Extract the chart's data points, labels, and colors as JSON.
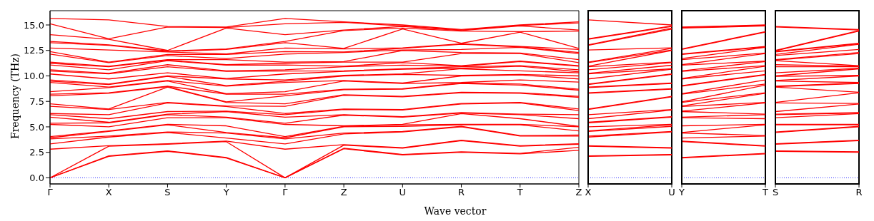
{
  "chart_data": [
    {
      "type": "line",
      "xlabel": "Wave vector",
      "ylabel": "Frequency (THz)",
      "categories": [
        "Γ",
        "X",
        "S",
        "Y",
        "Γ",
        "Z",
        "U",
        "R",
        "T",
        "Z"
      ],
      "ylim": [
        -0.6,
        16.4
      ],
      "yticks": [
        {
          "value": 0,
          "label": "0.0"
        },
        {
          "value": 2.5,
          "label": "2.5"
        },
        {
          "value": 5,
          "label": "5.0"
        },
        {
          "value": 7.5,
          "label": "7.5"
        },
        {
          "value": 10,
          "label": "10.0"
        },
        {
          "value": 12.5,
          "label": "12.5"
        },
        {
          "value": 15,
          "label": "15.0"
        }
      ],
      "ref_lines": [
        {
          "axis": "y",
          "value": 0,
          "color": "#0000ff",
          "line_style": "dotted"
        }
      ],
      "series": [
        {
          "color": "#ff0000",
          "values": [
            0,
            2.1,
            2.6,
            1.95,
            0,
            2.85,
            2.25,
            2.5,
            2.35,
            2.7
          ]
        },
        {
          "color": "#ff0000",
          "values": [
            0,
            2.15,
            2.65,
            2.0,
            0,
            2.9,
            2.3,
            2.55,
            2.4,
            3.0
          ]
        },
        {
          "color": "#ff0000",
          "values": [
            0,
            3.1,
            3.3,
            3.55,
            0,
            3.2,
            2.9,
            3.65,
            3.1,
            3.3
          ]
        },
        {
          "color": "#ff0000",
          "values": [
            2.81,
            3.15,
            3.35,
            3.6,
            2.81,
            3.25,
            2.95,
            3.7,
            3.15,
            3.35
          ]
        },
        {
          "color": "#ff0000",
          "values": [
            3.33,
            4.0,
            4.45,
            3.9,
            3.33,
            4.3,
            4.5,
            5.0,
            4.1,
            4.1
          ]
        },
        {
          "color": "#ff0000",
          "values": [
            3.81,
            4.1,
            4.5,
            4.4,
            3.81,
            4.4,
            4.55,
            5.05,
            4.15,
            4.2
          ]
        },
        {
          "color": "#ff0000",
          "values": [
            3.93,
            4.55,
            5.2,
            4.45,
            3.93,
            5.0,
            5.05,
            5.2,
            5.2,
            4.6
          ]
        },
        {
          "color": "#ff0000",
          "values": [
            4.05,
            4.6,
            5.25,
            5.1,
            4.05,
            5.05,
            5.2,
            5.25,
            5.25,
            5.0
          ]
        },
        {
          "color": "#ff0000",
          "values": [
            5.24,
            5.0,
            5.9,
            5.9,
            5.24,
            5.1,
            5.25,
            6.3,
            5.8,
            5.05
          ]
        },
        {
          "color": "#ff0000",
          "values": [
            5.36,
            5.4,
            6.2,
            5.95,
            5.36,
            6.15,
            5.95,
            6.35,
            6.2,
            5.8
          ]
        },
        {
          "color": "#ff0000",
          "values": [
            5.95,
            5.45,
            6.25,
            6.5,
            5.95,
            6.2,
            6.0,
            6.4,
            6.25,
            6.2
          ]
        },
        {
          "color": "#ff0000",
          "values": [
            6.19,
            5.8,
            6.5,
            6.55,
            6.19,
            6.7,
            6.65,
            7.25,
            7.35,
            6.6
          ]
        },
        {
          "color": "#ff0000",
          "values": [
            6.31,
            6.2,
            7.35,
            7.0,
            6.31,
            6.75,
            6.7,
            7.3,
            7.4,
            6.75
          ]
        },
        {
          "color": "#ff0000",
          "values": [
            7.02,
            6.7,
            7.4,
            7.05,
            7.02,
            8.1,
            7.95,
            8.35,
            8.3,
            7.9
          ]
        },
        {
          "color": "#ff0000",
          "values": [
            7.26,
            6.75,
            8.9,
            7.4,
            7.26,
            8.15,
            8.0,
            8.4,
            8.35,
            8.0
          ]
        },
        {
          "color": "#ff0000",
          "values": [
            8.05,
            8.3,
            8.95,
            7.45,
            8.05,
            8.65,
            8.7,
            9.25,
            9.1,
            8.6
          ]
        },
        {
          "color": "#ff0000",
          "values": [
            8.21,
            8.35,
            9.0,
            8.2,
            8.21,
            8.7,
            8.75,
            9.3,
            9.2,
            8.7
          ]
        },
        {
          "color": "#ff0000",
          "values": [
            8.45,
            8.85,
            9.5,
            8.25,
            8.45,
            9.5,
            9.25,
            9.35,
            9.6,
            9.4
          ]
        },
        {
          "color": "#ff0000",
          "values": [
            9.36,
            8.9,
            9.55,
            9.0,
            9.36,
            9.55,
            9.3,
            10.0,
            10.1,
            9.7
          ]
        },
        {
          "color": "#ff0000",
          "values": [
            9.48,
            9.15,
            9.95,
            9.05,
            9.48,
            10.0,
            10.15,
            10.05,
            10.15,
            10.0
          ]
        },
        {
          "color": "#ff0000",
          "values": [
            9.6,
            9.2,
            10.0,
            9.7,
            9.6,
            10.05,
            10.2,
            10.7,
            10.5,
            10.3
          ]
        },
        {
          "color": "#ff0000",
          "values": [
            10.19,
            9.7,
            10.3,
            9.75,
            10.19,
            10.45,
            10.65,
            10.75,
            10.95,
            10.4
          ]
        },
        {
          "color": "#ff0000",
          "values": [
            10.48,
            10.2,
            10.9,
            10.45,
            10.48,
            10.5,
            10.7,
            10.9,
            11.0,
            10.6
          ]
        },
        {
          "color": "#ff0000",
          "values": [
            10.6,
            10.25,
            11.1,
            10.5,
            10.6,
            10.9,
            11.05,
            10.95,
            11.4,
            10.95
          ]
        },
        {
          "color": "#ff0000",
          "values": [
            11.07,
            10.6,
            11.5,
            11.05,
            11.07,
            10.95,
            11.3,
            11.0,
            11.45,
            11.0
          ]
        },
        {
          "color": "#ff0000",
          "values": [
            11.24,
            10.9,
            11.55,
            11.1,
            11.24,
            11.35,
            11.35,
            12.2,
            12.2,
            11.3
          ]
        },
        {
          "color": "#ff0000",
          "values": [
            11.36,
            10.95,
            11.6,
            11.6,
            11.36,
            11.4,
            12.5,
            12.3,
            12.25,
            11.6
          ]
        },
        {
          "color": "#ff0000",
          "values": [
            12.14,
            11.3,
            12.0,
            11.7,
            12.14,
            12.3,
            12.55,
            12.6,
            12.8,
            12.2
          ]
        },
        {
          "color": "#ff0000",
          "values": [
            12.38,
            11.35,
            12.1,
            12.1,
            12.38,
            12.35,
            12.7,
            13.1,
            12.85,
            12.3
          ]
        },
        {
          "color": "#ff0000",
          "values": [
            12.74,
            12.55,
            12.35,
            12.15,
            12.74,
            12.65,
            12.75,
            13.15,
            12.9,
            12.6
          ]
        },
        {
          "color": "#ff0000",
          "values": [
            13.26,
            13.0,
            12.4,
            12.6,
            13.26,
            12.7,
            14.6,
            13.2,
            14.3,
            12.7
          ]
        },
        {
          "color": "#ff0000",
          "values": [
            13.38,
            13.05,
            12.45,
            12.65,
            13.38,
            14.45,
            14.7,
            14.4,
            14.35,
            14.4
          ]
        },
        {
          "color": "#ff0000",
          "values": [
            14.05,
            13.6,
            12.5,
            14.7,
            14.05,
            14.5,
            14.85,
            14.45,
            14.9,
            14.5
          ]
        },
        {
          "color": "#ff0000",
          "values": [
            15.12,
            13.65,
            14.8,
            14.75,
            15.12,
            15.25,
            14.9,
            14.5,
            14.95,
            15.2
          ]
        },
        {
          "color": "#ff0000",
          "values": [
            15.64,
            15.5,
            14.85,
            14.8,
            15.64,
            15.3,
            15.0,
            14.55,
            15.0,
            15.3
          ]
        }
      ]
    },
    {
      "type": "line",
      "tick_labels": "x",
      "categories": [
        "X",
        "U"
      ],
      "ylim": [
        -0.6,
        16.4
      ],
      "ref_lines": [
        {
          "axis": "y",
          "value": 0,
          "color": "#0000ff",
          "line_style": "dotted"
        }
      ],
      "series": [
        {
          "color": "#ff0000",
          "values": [
            2.1,
            2.25
          ]
        },
        {
          "color": "#ff0000",
          "values": [
            2.15,
            2.3
          ]
        },
        {
          "color": "#ff0000",
          "values": [
            3.1,
            2.9
          ]
        },
        {
          "color": "#ff0000",
          "values": [
            3.15,
            2.95
          ]
        },
        {
          "color": "#ff0000",
          "values": [
            4.0,
            4.5
          ]
        },
        {
          "color": "#ff0000",
          "values": [
            4.1,
            4.55
          ]
        },
        {
          "color": "#ff0000",
          "values": [
            4.55,
            5.05
          ]
        },
        {
          "color": "#ff0000",
          "values": [
            4.6,
            5.2
          ]
        },
        {
          "color": "#ff0000",
          "values": [
            5.0,
            5.25
          ]
        },
        {
          "color": "#ff0000",
          "values": [
            5.4,
            5.95
          ]
        },
        {
          "color": "#ff0000",
          "values": [
            5.45,
            6.0
          ]
        },
        {
          "color": "#ff0000",
          "values": [
            5.8,
            6.65
          ]
        },
        {
          "color": "#ff0000",
          "values": [
            6.2,
            6.7
          ]
        },
        {
          "color": "#ff0000",
          "values": [
            6.7,
            7.95
          ]
        },
        {
          "color": "#ff0000",
          "values": [
            6.75,
            8.0
          ]
        },
        {
          "color": "#ff0000",
          "values": [
            8.3,
            8.7
          ]
        },
        {
          "color": "#ff0000",
          "values": [
            8.35,
            8.75
          ]
        },
        {
          "color": "#ff0000",
          "values": [
            8.85,
            9.25
          ]
        },
        {
          "color": "#ff0000",
          "values": [
            8.9,
            9.3
          ]
        },
        {
          "color": "#ff0000",
          "values": [
            9.15,
            10.15
          ]
        },
        {
          "color": "#ff0000",
          "values": [
            9.2,
            10.2
          ]
        },
        {
          "color": "#ff0000",
          "values": [
            9.7,
            10.65
          ]
        },
        {
          "color": "#ff0000",
          "values": [
            10.2,
            10.7
          ]
        },
        {
          "color": "#ff0000",
          "values": [
            10.25,
            11.05
          ]
        },
        {
          "color": "#ff0000",
          "values": [
            10.6,
            11.3
          ]
        },
        {
          "color": "#ff0000",
          "values": [
            10.9,
            11.35
          ]
        },
        {
          "color": "#ff0000",
          "values": [
            10.95,
            12.5
          ]
        },
        {
          "color": "#ff0000",
          "values": [
            11.3,
            12.55
          ]
        },
        {
          "color": "#ff0000",
          "values": [
            11.35,
            12.7
          ]
        },
        {
          "color": "#ff0000",
          "values": [
            12.55,
            12.75
          ]
        },
        {
          "color": "#ff0000",
          "values": [
            13.0,
            14.6
          ]
        },
        {
          "color": "#ff0000",
          "values": [
            13.05,
            14.7
          ]
        },
        {
          "color": "#ff0000",
          "values": [
            13.6,
            14.85
          ]
        },
        {
          "color": "#ff0000",
          "values": [
            13.65,
            14.9
          ]
        },
        {
          "color": "#ff0000",
          "values": [
            15.5,
            15.0
          ]
        }
      ]
    },
    {
      "type": "line",
      "tick_labels": "x",
      "categories": [
        "Y",
        "T"
      ],
      "ylim": [
        -0.6,
        16.4
      ],
      "ref_lines": [
        {
          "axis": "y",
          "value": 0,
          "color": "#0000ff",
          "line_style": "dotted"
        }
      ],
      "series": [
        {
          "color": "#ff0000",
          "values": [
            1.95,
            2.35
          ]
        },
        {
          "color": "#ff0000",
          "values": [
            2.0,
            2.4
          ]
        },
        {
          "color": "#ff0000",
          "values": [
            3.55,
            3.1
          ]
        },
        {
          "color": "#ff0000",
          "values": [
            3.6,
            3.15
          ]
        },
        {
          "color": "#ff0000",
          "values": [
            3.9,
            4.1
          ]
        },
        {
          "color": "#ff0000",
          "values": [
            4.4,
            4.15
          ]
        },
        {
          "color": "#ff0000",
          "values": [
            4.45,
            5.2
          ]
        },
        {
          "color": "#ff0000",
          "values": [
            5.1,
            5.25
          ]
        },
        {
          "color": "#ff0000",
          "values": [
            5.9,
            5.8
          ]
        },
        {
          "color": "#ff0000",
          "values": [
            5.95,
            6.2
          ]
        },
        {
          "color": "#ff0000",
          "values": [
            6.5,
            6.25
          ]
        },
        {
          "color": "#ff0000",
          "values": [
            6.55,
            7.35
          ]
        },
        {
          "color": "#ff0000",
          "values": [
            7.0,
            7.4
          ]
        },
        {
          "color": "#ff0000",
          "values": [
            7.05,
            8.3
          ]
        },
        {
          "color": "#ff0000",
          "values": [
            7.4,
            8.35
          ]
        },
        {
          "color": "#ff0000",
          "values": [
            7.45,
            9.1
          ]
        },
        {
          "color": "#ff0000",
          "values": [
            8.2,
            9.2
          ]
        },
        {
          "color": "#ff0000",
          "values": [
            8.25,
            9.6
          ]
        },
        {
          "color": "#ff0000",
          "values": [
            9.0,
            10.1
          ]
        },
        {
          "color": "#ff0000",
          "values": [
            9.05,
            10.15
          ]
        },
        {
          "color": "#ff0000",
          "values": [
            9.7,
            10.5
          ]
        },
        {
          "color": "#ff0000",
          "values": [
            9.75,
            10.95
          ]
        },
        {
          "color": "#ff0000",
          "values": [
            10.45,
            11.0
          ]
        },
        {
          "color": "#ff0000",
          "values": [
            10.5,
            11.4
          ]
        },
        {
          "color": "#ff0000",
          "values": [
            11.05,
            11.45
          ]
        },
        {
          "color": "#ff0000",
          "values": [
            11.1,
            12.2
          ]
        },
        {
          "color": "#ff0000",
          "values": [
            11.6,
            12.25
          ]
        },
        {
          "color": "#ff0000",
          "values": [
            11.7,
            12.8
          ]
        },
        {
          "color": "#ff0000",
          "values": [
            12.1,
            12.85
          ]
        },
        {
          "color": "#ff0000",
          "values": [
            12.15,
            12.9
          ]
        },
        {
          "color": "#ff0000",
          "values": [
            12.6,
            14.3
          ]
        },
        {
          "color": "#ff0000",
          "values": [
            12.65,
            14.35
          ]
        },
        {
          "color": "#ff0000",
          "values": [
            14.7,
            14.9
          ]
        },
        {
          "color": "#ff0000",
          "values": [
            14.75,
            14.95
          ]
        },
        {
          "color": "#ff0000",
          "values": [
            14.8,
            15.0
          ]
        }
      ]
    },
    {
      "type": "line",
      "tick_labels": "x",
      "categories": [
        "S",
        "R"
      ],
      "ylim": [
        -0.6,
        16.4
      ],
      "ref_lines": [
        {
          "axis": "y",
          "value": 0,
          "color": "#0000ff",
          "line_style": "dotted"
        }
      ],
      "series": [
        {
          "color": "#ff0000",
          "values": [
            2.6,
            2.5
          ]
        },
        {
          "color": "#ff0000",
          "values": [
            2.65,
            2.55
          ]
        },
        {
          "color": "#ff0000",
          "values": [
            3.3,
            3.65
          ]
        },
        {
          "color": "#ff0000",
          "values": [
            3.35,
            3.7
          ]
        },
        {
          "color": "#ff0000",
          "values": [
            4.45,
            5.0
          ]
        },
        {
          "color": "#ff0000",
          "values": [
            4.5,
            5.05
          ]
        },
        {
          "color": "#ff0000",
          "values": [
            5.2,
            5.2
          ]
        },
        {
          "color": "#ff0000",
          "values": [
            5.25,
            5.25
          ]
        },
        {
          "color": "#ff0000",
          "values": [
            5.9,
            6.3
          ]
        },
        {
          "color": "#ff0000",
          "values": [
            6.2,
            6.35
          ]
        },
        {
          "color": "#ff0000",
          "values": [
            6.25,
            6.4
          ]
        },
        {
          "color": "#ff0000",
          "values": [
            6.5,
            7.25
          ]
        },
        {
          "color": "#ff0000",
          "values": [
            7.35,
            7.3
          ]
        },
        {
          "color": "#ff0000",
          "values": [
            7.4,
            8.35
          ]
        },
        {
          "color": "#ff0000",
          "values": [
            8.9,
            8.4
          ]
        },
        {
          "color": "#ff0000",
          "values": [
            8.95,
            9.25
          ]
        },
        {
          "color": "#ff0000",
          "values": [
            9.0,
            9.3
          ]
        },
        {
          "color": "#ff0000",
          "values": [
            9.5,
            9.35
          ]
        },
        {
          "color": "#ff0000",
          "values": [
            9.55,
            10.0
          ]
        },
        {
          "color": "#ff0000",
          "values": [
            9.95,
            10.05
          ]
        },
        {
          "color": "#ff0000",
          "values": [
            10.0,
            10.7
          ]
        },
        {
          "color": "#ff0000",
          "values": [
            10.3,
            10.75
          ]
        },
        {
          "color": "#ff0000",
          "values": [
            10.9,
            10.9
          ]
        },
        {
          "color": "#ff0000",
          "values": [
            11.1,
            10.95
          ]
        },
        {
          "color": "#ff0000",
          "values": [
            11.5,
            11.0
          ]
        },
        {
          "color": "#ff0000",
          "values": [
            11.55,
            12.2
          ]
        },
        {
          "color": "#ff0000",
          "values": [
            11.6,
            12.3
          ]
        },
        {
          "color": "#ff0000",
          "values": [
            12.0,
            12.6
          ]
        },
        {
          "color": "#ff0000",
          "values": [
            12.1,
            13.1
          ]
        },
        {
          "color": "#ff0000",
          "values": [
            12.35,
            13.15
          ]
        },
        {
          "color": "#ff0000",
          "values": [
            12.4,
            13.2
          ]
        },
        {
          "color": "#ff0000",
          "values": [
            12.45,
            14.4
          ]
        },
        {
          "color": "#ff0000",
          "values": [
            12.5,
            14.45
          ]
        },
        {
          "color": "#ff0000",
          "values": [
            14.8,
            14.5
          ]
        },
        {
          "color": "#ff0000",
          "values": [
            14.85,
            14.55
          ]
        }
      ]
    }
  ]
}
